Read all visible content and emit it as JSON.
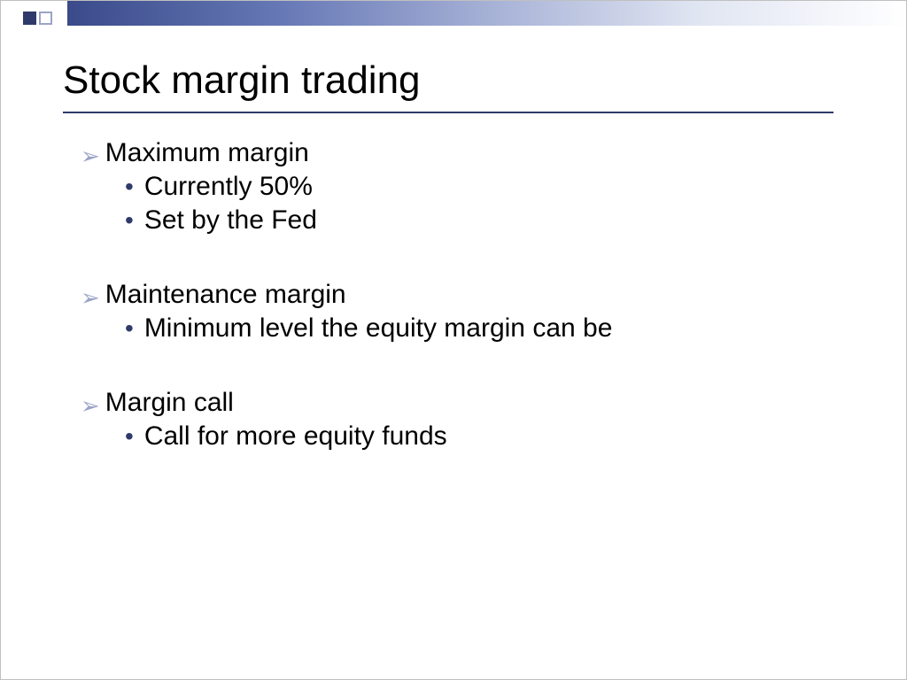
{
  "slide": {
    "title": "Stock margin trading",
    "colors": {
      "accent_dark": "#2e3a6a",
      "accent_light": "#9aa4c8",
      "text": "#000000",
      "background": "#ffffff",
      "gradient_start": "#3a4a8a",
      "gradient_end": "#ffffff"
    },
    "typography": {
      "title_fontsize": 44,
      "body_fontsize": 30,
      "font_family": "Arial"
    },
    "groups": [
      {
        "heading": "Maximum margin",
        "items": [
          "Currently 50%",
          "Set by the Fed"
        ]
      },
      {
        "heading": "Maintenance margin",
        "items": [
          "Minimum level the equity margin can be"
        ]
      },
      {
        "heading": "Margin call",
        "items": [
          "Call for more equity funds"
        ]
      }
    ]
  }
}
